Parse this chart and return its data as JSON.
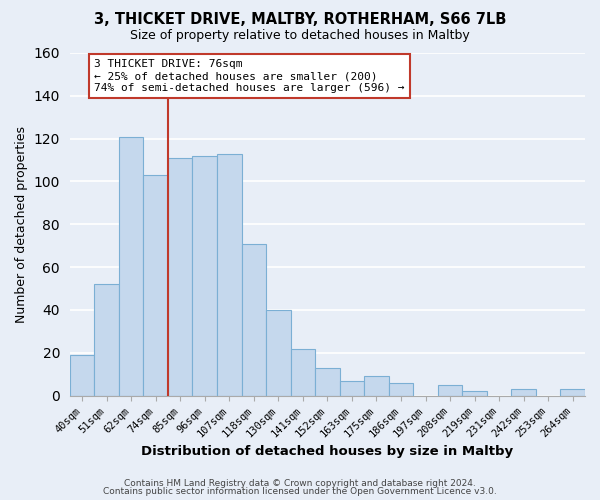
{
  "title": "3, THICKET DRIVE, MALTBY, ROTHERHAM, S66 7LB",
  "subtitle": "Size of property relative to detached houses in Maltby",
  "xlabel": "Distribution of detached houses by size in Maltby",
  "ylabel": "Number of detached properties",
  "categories": [
    "40sqm",
    "51sqm",
    "62sqm",
    "74sqm",
    "85sqm",
    "96sqm",
    "107sqm",
    "118sqm",
    "130sqm",
    "141sqm",
    "152sqm",
    "163sqm",
    "175sqm",
    "186sqm",
    "197sqm",
    "208sqm",
    "219sqm",
    "231sqm",
    "242sqm",
    "253sqm",
    "264sqm"
  ],
  "values": [
    19,
    52,
    121,
    103,
    111,
    112,
    113,
    71,
    40,
    22,
    13,
    7,
    9,
    6,
    0,
    5,
    2,
    0,
    3,
    0,
    3
  ],
  "bar_color": "#c5d8ed",
  "bar_edge_color": "#7bafd4",
  "vline_color": "#c0392b",
  "annotation_title": "3 THICKET DRIVE: 76sqm",
  "annotation_line1": "← 25% of detached houses are smaller (200)",
  "annotation_line2": "74% of semi-detached houses are larger (596) →",
  "annotation_box_facecolor": "#ffffff",
  "annotation_box_edgecolor": "#c0392b",
  "ylim": [
    0,
    160
  ],
  "yticks": [
    0,
    20,
    40,
    60,
    80,
    100,
    120,
    140,
    160
  ],
  "footer1": "Contains HM Land Registry data © Crown copyright and database right 2024.",
  "footer2": "Contains public sector information licensed under the Open Government Licence v3.0.",
  "bg_color": "#e8eef7",
  "plot_bg_color": "#e8eef7",
  "grid_color": "#ffffff",
  "vline_x_index": 3
}
